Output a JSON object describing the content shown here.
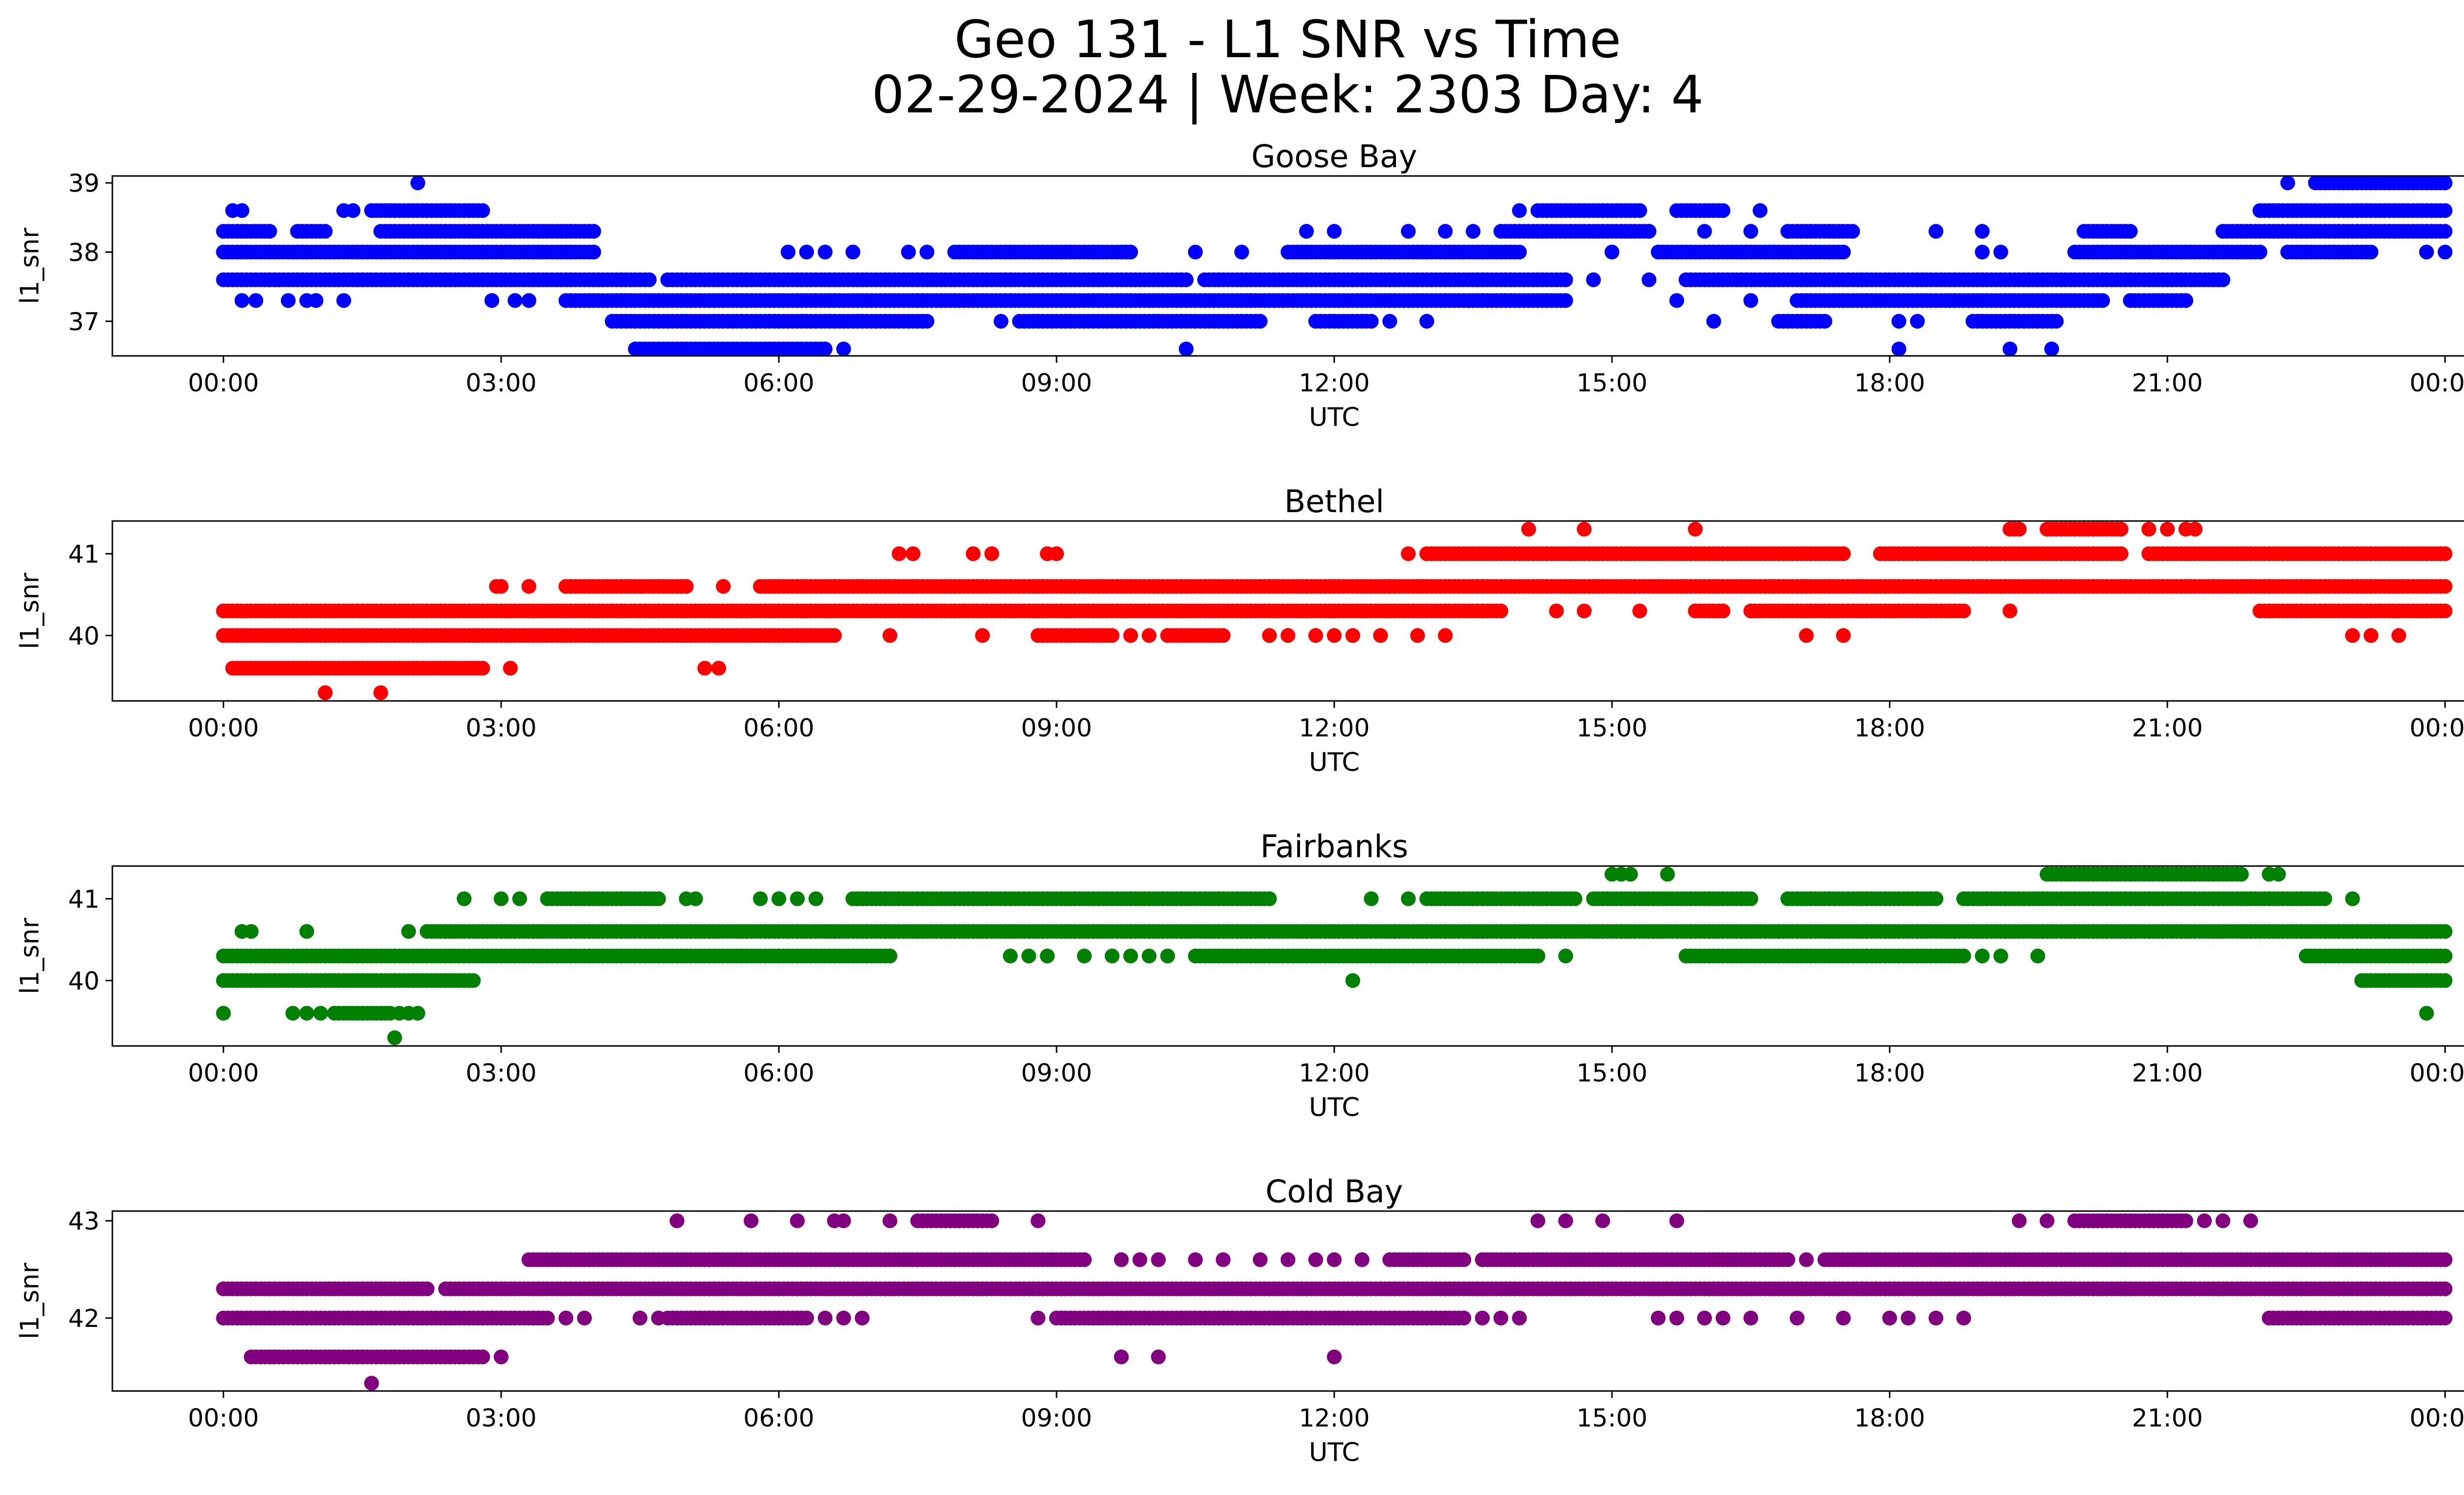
{
  "figure": {
    "title_line1": "Geo 131 - L1 SNR vs Time",
    "title_line2": "02-29-2024 | Week: 2303 Day: 4"
  },
  "chart_data": [
    {
      "type": "scatter",
      "title": "Goose Bay",
      "xlabel": "UTC",
      "ylabel": "l1_snr",
      "color": "#0000ff",
      "x_unit": "hours UTC",
      "x_ticks": [
        "00:00",
        "03:00",
        "06:00",
        "09:00",
        "12:00",
        "15:00",
        "18:00",
        "21:00",
        "00:00"
      ],
      "xlim": [
        -1.2,
        25.2
      ],
      "ylim": [
        36.5,
        39.1
      ],
      "y_ticks": [
        37,
        38,
        39
      ],
      "levels": [
        {
          "y": 36.6,
          "ranges": [
            [
              4.5,
              6.5
            ]
          ],
          "points": [
            4.45,
            6.7,
            10.4,
            18.1,
            19.3,
            19.75
          ]
        },
        {
          "y": 37.0,
          "ranges": [
            [
              4.2,
              7.6
            ],
            [
              8.6,
              11.2
            ],
            [
              11.8,
              12.4
            ],
            [
              16.8,
              17.3
            ],
            [
              18.9,
              19.8
            ]
          ],
          "points": [
            8.4,
            12.6,
            13.0,
            16.1,
            18.1,
            18.3
          ]
        },
        {
          "y": 37.3,
          "ranges": [
            [
              3.7,
              14.5
            ],
            [
              17.0,
              20.3
            ],
            [
              20.6,
              21.2
            ]
          ],
          "points": [
            0.2,
            0.35,
            0.7,
            0.9,
            1.0,
            1.3,
            2.9,
            3.15,
            3.3,
            15.7,
            16.5
          ]
        },
        {
          "y": 37.6,
          "ranges": [
            [
              0.0,
              4.6
            ],
            [
              4.8,
              10.4
            ],
            [
              10.6,
              14.5
            ],
            [
              15.8,
              21.6
            ]
          ],
          "points": [
            14.8,
            15.4,
            19.5
          ]
        },
        {
          "y": 38.0,
          "ranges": [
            [
              0.0,
              4.0
            ],
            [
              7.9,
              9.8
            ],
            [
              11.5,
              14.0
            ],
            [
              15.5,
              17.5
            ],
            [
              20.0,
              22.0
            ],
            [
              22.3,
              23.2
            ]
          ],
          "points": [
            6.1,
            6.3,
            6.5,
            6.8,
            7.4,
            7.6,
            10.5,
            11.0,
            12.0,
            15.0,
            19.0,
            19.2,
            23.8,
            24.0
          ]
        },
        {
          "y": 38.3,
          "ranges": [
            [
              0.0,
              0.5
            ],
            [
              0.8,
              1.1
            ],
            [
              1.7,
              4.0
            ],
            [
              13.8,
              15.4
            ],
            [
              16.9,
              17.6
            ],
            [
              20.1,
              20.6
            ],
            [
              21.6,
              24.0
            ]
          ],
          "points": [
            11.7,
            12.0,
            12.8,
            13.2,
            13.5,
            16.0,
            16.5,
            18.5,
            19.0
          ]
        },
        {
          "y": 38.6,
          "ranges": [
            [
              1.6,
              2.8
            ],
            [
              14.2,
              15.3
            ],
            [
              15.7,
              16.2
            ],
            [
              22.0,
              24.0
            ]
          ],
          "points": [
            0.1,
            0.2,
            1.3,
            1.4,
            14.0,
            16.6
          ]
        },
        {
          "y": 39.0,
          "ranges": [
            [
              22.6,
              24.0
            ]
          ],
          "points": [
            2.1,
            22.3
          ]
        }
      ]
    },
    {
      "type": "scatter",
      "title": "Bethel",
      "xlabel": "UTC",
      "ylabel": "l1_snr",
      "color": "#ff0000",
      "x_unit": "hours UTC",
      "x_ticks": [
        "00:00",
        "03:00",
        "06:00",
        "09:00",
        "12:00",
        "15:00",
        "18:00",
        "21:00",
        "00:00"
      ],
      "xlim": [
        -1.2,
        25.2
      ],
      "ylim": [
        39.2,
        41.4
      ],
      "y_ticks": [
        40,
        41
      ],
      "levels": [
        {
          "y": 39.3,
          "ranges": [],
          "points": [
            1.1,
            1.7
          ]
        },
        {
          "y": 39.6,
          "ranges": [
            [
              0.1,
              2.8
            ]
          ],
          "points": [
            3.1,
            5.2,
            5.35
          ]
        },
        {
          "y": 40.0,
          "ranges": [
            [
              0.0,
              6.6
            ],
            [
              8.8,
              9.6
            ],
            [
              10.2,
              10.8
            ]
          ],
          "points": [
            7.2,
            8.2,
            9.8,
            10.0,
            11.3,
            11.5,
            11.8,
            12.0,
            12.2,
            12.5,
            12.9,
            13.2,
            17.1,
            17.5,
            23.0,
            23.2,
            23.5
          ]
        },
        {
          "y": 40.3,
          "ranges": [
            [
              0.0,
              13.8
            ],
            [
              15.9,
              16.2
            ],
            [
              16.5,
              18.8
            ],
            [
              22.0,
              24.0
            ]
          ],
          "points": [
            14.4,
            14.7,
            15.3,
            19.3
          ]
        },
        {
          "y": 40.6,
          "ranges": [
            [
              3.7,
              5.0
            ],
            [
              5.8,
              24.0
            ]
          ],
          "points": [
            3.0,
            3.3,
            2.95,
            5.4
          ]
        },
        {
          "y": 41.0,
          "ranges": [
            [
              13.0,
              17.5
            ],
            [
              17.9,
              20.5
            ],
            [
              20.8,
              24.0
            ]
          ],
          "points": [
            7.3,
            7.45,
            8.1,
            8.3,
            8.9,
            9.0,
            12.8
          ]
        },
        {
          "y": 41.3,
          "ranges": [
            [
              19.3,
              19.4
            ],
            [
              19.7,
              20.5
            ]
          ],
          "points": [
            14.1,
            14.7,
            15.9,
            20.8,
            21.0,
            21.2,
            21.3
          ]
        }
      ]
    },
    {
      "type": "scatter",
      "title": "Fairbanks",
      "xlabel": "UTC",
      "ylabel": "l1_snr",
      "color": "#008000",
      "x_unit": "hours UTC",
      "x_ticks": [
        "00:00",
        "03:00",
        "06:00",
        "09:00",
        "12:00",
        "15:00",
        "18:00",
        "21:00",
        "00:00"
      ],
      "xlim": [
        -1.2,
        25.2
      ],
      "ylim": [
        39.2,
        41.4
      ],
      "y_ticks": [
        40,
        41
      ],
      "levels": [
        {
          "y": 39.3,
          "ranges": [],
          "points": [
            1.85
          ]
        },
        {
          "y": 39.6,
          "ranges": [
            [
              1.2,
              1.8
            ]
          ],
          "points": [
            0.0,
            0.75,
            0.9,
            1.05,
            1.9,
            2.0,
            2.1,
            23.8
          ]
        },
        {
          "y": 40.0,
          "ranges": [
            [
              0.0,
              2.7
            ],
            [
              23.1,
              24.0
            ]
          ],
          "points": [
            12.2
          ]
        },
        {
          "y": 40.3,
          "ranges": [
            [
              0.0,
              7.2
            ],
            [
              10.5,
              14.2
            ],
            [
              15.8,
              18.8
            ],
            [
              22.5,
              24.0
            ]
          ],
          "points": [
            8.5,
            8.7,
            8.9,
            9.3,
            9.6,
            9.8,
            10.0,
            10.2,
            14.5,
            19.0,
            19.2,
            19.6
          ]
        },
        {
          "y": 40.6,
          "ranges": [
            [
              2.2,
              24.0
            ]
          ],
          "points": [
            0.2,
            0.3,
            0.9,
            2.0
          ]
        },
        {
          "y": 41.0,
          "ranges": [
            [
              3.5,
              4.7
            ],
            [
              6.8,
              11.3
            ],
            [
              13.0,
              14.6
            ],
            [
              14.8,
              16.5
            ],
            [
              16.9,
              18.5
            ],
            [
              18.8,
              22.7
            ]
          ],
          "points": [
            2.6,
            3.0,
            3.2,
            5.0,
            5.1,
            5.8,
            6.0,
            6.2,
            6.4,
            12.4,
            12.8,
            17.7,
            23.0
          ]
        },
        {
          "y": 41.3,
          "ranges": [
            [
              19.7,
              21.8
            ]
          ],
          "points": [
            15.0,
            15.1,
            15.2,
            15.6,
            22.1,
            22.2
          ]
        }
      ]
    },
    {
      "type": "scatter",
      "title": "Cold Bay",
      "xlabel": "UTC",
      "ylabel": "l1_snr",
      "color": "#800080",
      "x_unit": "hours UTC",
      "x_ticks": [
        "00:00",
        "03:00",
        "06:00",
        "09:00",
        "12:00",
        "15:00",
        "18:00",
        "21:00",
        "00:00"
      ],
      "xlim": [
        -1.2,
        25.2
      ],
      "ylim": [
        41.25,
        43.1
      ],
      "y_ticks": [
        42,
        43
      ],
      "levels": [
        {
          "y": 41.33,
          "ranges": [],
          "points": [
            1.6
          ]
        },
        {
          "y": 41.6,
          "ranges": [
            [
              0.3,
              2.8
            ]
          ],
          "points": [
            3.0,
            9.7,
            10.1,
            12.0
          ]
        },
        {
          "y": 42.0,
          "ranges": [
            [
              0.0,
              3.5
            ],
            [
              4.8,
              6.3
            ],
            [
              9.0,
              13.4
            ],
            [
              22.1,
              24.0
            ]
          ],
          "points": [
            3.7,
            3.9,
            4.5,
            4.7,
            6.5,
            6.7,
            6.9,
            8.8,
            13.6,
            13.8,
            14.0,
            15.5,
            15.7,
            16.0,
            16.2,
            16.5,
            17.0,
            17.5,
            18.0,
            18.2,
            18.5,
            18.8
          ]
        },
        {
          "y": 42.3,
          "ranges": [
            [
              0.0,
              2.2
            ],
            [
              2.4,
              24.0
            ]
          ],
          "points": []
        },
        {
          "y": 42.6,
          "ranges": [
            [
              3.3,
              9.3
            ],
            [
              12.6,
              13.4
            ],
            [
              13.6,
              16.9
            ],
            [
              17.3,
              24.0
            ]
          ],
          "points": [
            9.7,
            9.9,
            10.1,
            10.5,
            10.8,
            11.2,
            11.5,
            11.8,
            12.0,
            12.3,
            17.1
          ]
        },
        {
          "y": 43.0,
          "ranges": [
            [
              7.5,
              8.3
            ],
            [
              20.0,
              21.2
            ]
          ],
          "points": [
            4.9,
            5.7,
            6.2,
            6.6,
            6.7,
            7.2,
            8.8,
            14.2,
            14.5,
            14.9,
            15.7,
            19.4,
            19.7,
            21.4,
            21.6,
            21.9
          ]
        }
      ]
    }
  ]
}
